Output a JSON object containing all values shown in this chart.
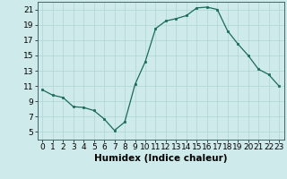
{
  "x": [
    0,
    1,
    2,
    3,
    4,
    5,
    6,
    7,
    8,
    9,
    10,
    11,
    12,
    13,
    14,
    15,
    16,
    17,
    18,
    19,
    20,
    21,
    22,
    23
  ],
  "y": [
    10.5,
    9.8,
    9.5,
    8.3,
    8.2,
    7.8,
    6.7,
    5.2,
    6.3,
    11.2,
    14.2,
    18.5,
    19.5,
    19.8,
    20.2,
    21.2,
    21.3,
    21.0,
    18.2,
    16.5,
    15.0,
    13.2,
    12.5,
    11.0
  ],
  "line_color": "#1a6b5a",
  "marker": "s",
  "marker_size": 2,
  "bg_color": "#ceeaea",
  "grid_color": "#aed4d4",
  "xlabel": "Humidex (Indice chaleur)",
  "xlim": [
    -0.5,
    23.5
  ],
  "ylim": [
    4,
    22
  ],
  "yticks": [
    5,
    7,
    9,
    11,
    13,
    15,
    17,
    19,
    21
  ],
  "xticks": [
    0,
    1,
    2,
    3,
    4,
    5,
    6,
    7,
    8,
    9,
    10,
    11,
    12,
    13,
    14,
    15,
    16,
    17,
    18,
    19,
    20,
    21,
    22,
    23
  ],
  "xlabel_fontsize": 7.5,
  "tick_fontsize": 6.5
}
